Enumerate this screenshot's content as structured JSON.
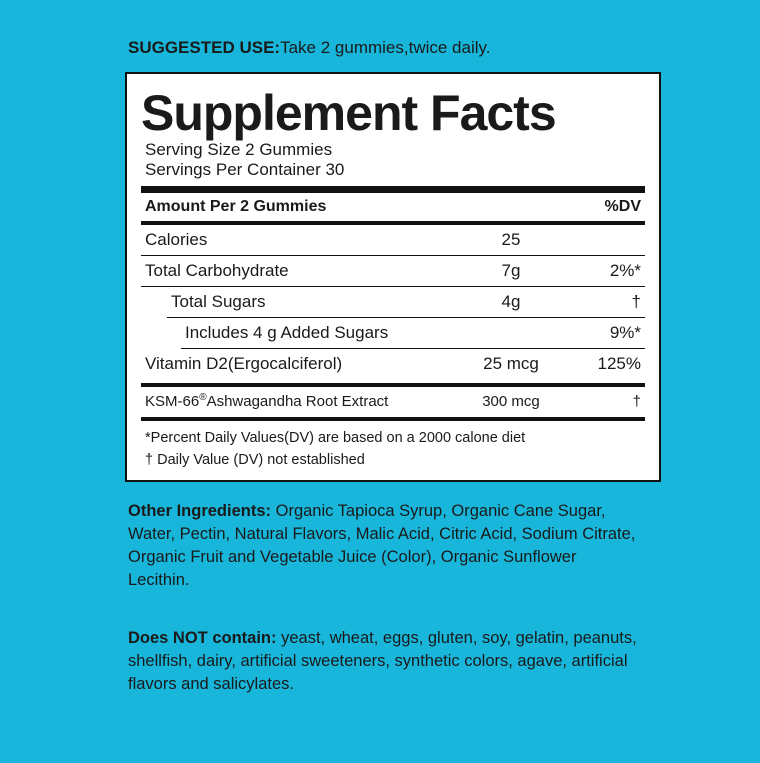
{
  "suggested_use": {
    "label": "SUGGESTED USE:",
    "text": "Take 2 gummies,twice daily."
  },
  "facts": {
    "title": "Supplement Facts",
    "serving_size": "Serving Size 2 Gummies",
    "servings_per_container": "Servings Per Container 30",
    "header": [
      "Amount Per 2 Gummies",
      "%DV"
    ],
    "rows": [
      {
        "name": "Calories",
        "amount": "25",
        "dv": ""
      },
      {
        "name": "Total Carbohydrate",
        "amount": "7g",
        "dv": "2%*"
      },
      {
        "name": "Total Sugars",
        "amount": "4g",
        "dv": "†"
      },
      {
        "name": "Includes 4 g Added Sugars",
        "amount": "",
        "dv": "9%*"
      },
      {
        "name": "Vitamin D2(Ergocalciferol)",
        "amount": "25 mcg",
        "dv": "125%"
      },
      {
        "name_parts": [
          "KSM-66",
          "®",
          "Ashwagandha Root Extract"
        ],
        "amount": "300 mcg",
        "dv": "†"
      }
    ],
    "footnotes": [
      "*Percent Daily Values(DV) are based on a 2000 calone diet",
      "† Daily Value (DV) not established"
    ]
  },
  "other_ingredients": {
    "label": "Other Ingredients:",
    "text": "Organic Tapioca Syrup, Organic Cane Sugar, Water, Pectin, Natural Flavors, Malic Acid, Citric Acid, Sodium Citrate, Organic Fruit and Vegetable Juice (Color), Organic Sunflower Lecithin."
  },
  "does_not_contain": {
    "label": "Does NOT contain:",
    "text": "yeast, wheat, eggs, gluten, soy, gelatin, peanuts, shellfish, dairy, artificial sweeteners, synthetic colors, agave, artificial flavors and salicylates."
  }
}
